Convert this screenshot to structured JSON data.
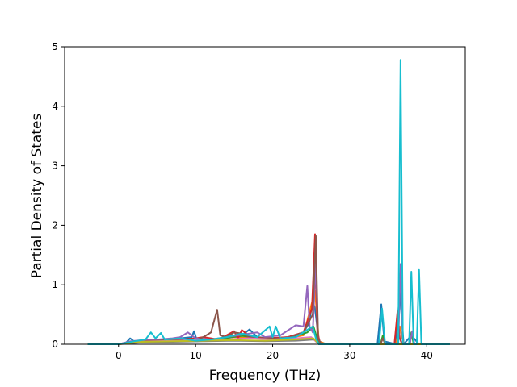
{
  "chart_data": {
    "type": "line",
    "title": "",
    "xlabel": "Frequency (THz)",
    "ylabel": "Partial Density of States",
    "xlim": [
      -7,
      45
    ],
    "ylim": [
      0,
      5
    ],
    "xticks": [
      0,
      10,
      20,
      30,
      40
    ],
    "yticks": [
      0,
      1,
      2,
      3,
      4,
      5
    ],
    "grid": false,
    "legend": "none",
    "series": [
      {
        "color": "#1f77b4",
        "points": [
          [
            -4,
            0
          ],
          [
            0,
            0
          ],
          [
            1,
            0.03
          ],
          [
            1.5,
            0.1
          ],
          [
            2,
            0.05
          ],
          [
            4,
            0.06
          ],
          [
            6,
            0.08
          ],
          [
            8,
            0.1
          ],
          [
            9.5,
            0.12
          ],
          [
            9.8,
            0.22
          ],
          [
            10.2,
            0.05
          ],
          [
            12,
            0.08
          ],
          [
            14,
            0.1
          ],
          [
            16,
            0.15
          ],
          [
            17,
            0.25
          ],
          [
            18,
            0.12
          ],
          [
            20,
            0.1
          ],
          [
            22,
            0.12
          ],
          [
            24,
            0.2
          ],
          [
            24.7,
            0.35
          ],
          [
            25.2,
            0.72
          ],
          [
            25.5,
            0.6
          ],
          [
            26,
            0.05
          ],
          [
            27,
            0
          ],
          [
            33.6,
            0
          ],
          [
            34.1,
            0.67
          ],
          [
            34.5,
            0.05
          ],
          [
            36,
            0
          ],
          [
            36.5,
            0.9
          ],
          [
            37,
            0
          ],
          [
            38,
            0.15
          ],
          [
            39,
            0
          ],
          [
            43,
            0
          ]
        ]
      },
      {
        "color": "#ff7f0e",
        "points": [
          [
            -4,
            0
          ],
          [
            0,
            0
          ],
          [
            2,
            0.05
          ],
          [
            5,
            0.06
          ],
          [
            8,
            0.08
          ],
          [
            10,
            0.06
          ],
          [
            12,
            0.08
          ],
          [
            15,
            0.12
          ],
          [
            18,
            0.1
          ],
          [
            21,
            0.08
          ],
          [
            24,
            0.15
          ],
          [
            25.5,
            0.9
          ],
          [
            26,
            0.05
          ],
          [
            27,
            0
          ],
          [
            36,
            0
          ],
          [
            36.5,
            0.3
          ],
          [
            37,
            0
          ],
          [
            43,
            0
          ]
        ]
      },
      {
        "color": "#2ca02c",
        "points": [
          [
            -4,
            0
          ],
          [
            0,
            0
          ],
          [
            2,
            0.04
          ],
          [
            5,
            0.06
          ],
          [
            8,
            0.07
          ],
          [
            10,
            0.06
          ],
          [
            13,
            0.09
          ],
          [
            16,
            0.14
          ],
          [
            19,
            0.1
          ],
          [
            22,
            0.1
          ],
          [
            24.5,
            0.2
          ],
          [
            25.3,
            0.3
          ],
          [
            26,
            0
          ],
          [
            34,
            0
          ],
          [
            34.3,
            0.15
          ],
          [
            34.6,
            0
          ],
          [
            37.8,
            0
          ],
          [
            38,
            0.2
          ],
          [
            38.3,
            0
          ],
          [
            43,
            0
          ]
        ]
      },
      {
        "color": "#d62728",
        "points": [
          [
            -4,
            0
          ],
          [
            0,
            0
          ],
          [
            2,
            0.05
          ],
          [
            5,
            0.06
          ],
          [
            8,
            0.08
          ],
          [
            10,
            0.1
          ],
          [
            11,
            0.12
          ],
          [
            12,
            0.1
          ],
          [
            13,
            0.08
          ],
          [
            15,
            0.22
          ],
          [
            15.5,
            0.1
          ],
          [
            16,
            0.24
          ],
          [
            17,
            0.14
          ],
          [
            19,
            0.1
          ],
          [
            22,
            0.12
          ],
          [
            24,
            0.2
          ],
          [
            25.1,
            0.6
          ],
          [
            25.5,
            1.85
          ],
          [
            25.8,
            0.2
          ],
          [
            26.2,
            0
          ],
          [
            35.8,
            0
          ],
          [
            36.2,
            0.55
          ],
          [
            36.5,
            0.1
          ],
          [
            36.8,
            0
          ],
          [
            43,
            0
          ]
        ]
      },
      {
        "color": "#9467bd",
        "points": [
          [
            -4,
            0
          ],
          [
            0,
            0
          ],
          [
            1.5,
            0.05
          ],
          [
            3,
            0.07
          ],
          [
            5,
            0.08
          ],
          [
            7,
            0.1
          ],
          [
            8,
            0.12
          ],
          [
            9,
            0.2
          ],
          [
            10,
            0.1
          ],
          [
            12,
            0.08
          ],
          [
            14,
            0.12
          ],
          [
            16,
            0.16
          ],
          [
            18,
            0.2
          ],
          [
            19,
            0.12
          ],
          [
            21,
            0.15
          ],
          [
            23,
            0.32
          ],
          [
            24,
            0.3
          ],
          [
            24.5,
            0.98
          ],
          [
            24.8,
            0.3
          ],
          [
            25.2,
            0.2
          ],
          [
            25.6,
            1.4
          ],
          [
            25.9,
            0.1
          ],
          [
            26.3,
            0
          ],
          [
            36.3,
            0
          ],
          [
            36.6,
            1.35
          ],
          [
            36.9,
            0
          ],
          [
            37.8,
            0
          ],
          [
            38.1,
            0.22
          ],
          [
            38.4,
            0
          ],
          [
            43,
            0
          ]
        ]
      },
      {
        "color": "#8c564b",
        "points": [
          [
            -4,
            0
          ],
          [
            0,
            0
          ],
          [
            2,
            0.05
          ],
          [
            5,
            0.06
          ],
          [
            8,
            0.08
          ],
          [
            10,
            0.06
          ],
          [
            11,
            0.12
          ],
          [
            12,
            0.2
          ],
          [
            12.8,
            0.58
          ],
          [
            13.2,
            0.15
          ],
          [
            14,
            0.12
          ],
          [
            15,
            0.2
          ],
          [
            16,
            0.18
          ],
          [
            17,
            0.12
          ],
          [
            19,
            0.1
          ],
          [
            22,
            0.1
          ],
          [
            24,
            0.2
          ],
          [
            25.2,
            0.5
          ],
          [
            25.6,
            1.82
          ],
          [
            25.9,
            0.1
          ],
          [
            26.3,
            0
          ],
          [
            34,
            0
          ],
          [
            34.3,
            0.1
          ],
          [
            34.6,
            0
          ],
          [
            43,
            0
          ]
        ]
      },
      {
        "color": "#e377c2",
        "points": [
          [
            -4,
            0
          ],
          [
            0,
            0
          ],
          [
            2,
            0.04
          ],
          [
            5,
            0.05
          ],
          [
            8,
            0.06
          ],
          [
            11,
            0.07
          ],
          [
            14,
            0.08
          ],
          [
            17,
            0.1
          ],
          [
            20,
            0.08
          ],
          [
            23,
            0.1
          ],
          [
            25,
            0.12
          ],
          [
            26,
            0
          ],
          [
            43,
            0
          ]
        ]
      },
      {
        "color": "#7f7f7f",
        "points": [
          [
            -4,
            0
          ],
          [
            0,
            0
          ],
          [
            3,
            0.03
          ],
          [
            7,
            0.04
          ],
          [
            11,
            0.05
          ],
          [
            15,
            0.06
          ],
          [
            19,
            0.05
          ],
          [
            23,
            0.06
          ],
          [
            25.5,
            0.08
          ],
          [
            26,
            0
          ],
          [
            43,
            0
          ]
        ]
      },
      {
        "color": "#bcbd22",
        "points": [
          [
            -4,
            0
          ],
          [
            0,
            0
          ],
          [
            3,
            0.04
          ],
          [
            7,
            0.05
          ],
          [
            11,
            0.06
          ],
          [
            15,
            0.07
          ],
          [
            19,
            0.06
          ],
          [
            23,
            0.08
          ],
          [
            25.3,
            0.1
          ],
          [
            26,
            0
          ],
          [
            43,
            0
          ]
        ]
      },
      {
        "color": "#17becf",
        "points": [
          [
            -4,
            0
          ],
          [
            0,
            0
          ],
          [
            2,
            0.05
          ],
          [
            3.5,
            0.08
          ],
          [
            4.2,
            0.2
          ],
          [
            4.8,
            0.1
          ],
          [
            5.5,
            0.19
          ],
          [
            6,
            0.08
          ],
          [
            8,
            0.1
          ],
          [
            10,
            0.06
          ],
          [
            12,
            0.08
          ],
          [
            14,
            0.12
          ],
          [
            16,
            0.18
          ],
          [
            18,
            0.12
          ],
          [
            19.6,
            0.3
          ],
          [
            20,
            0.12
          ],
          [
            20.4,
            0.3
          ],
          [
            21,
            0.1
          ],
          [
            23,
            0.12
          ],
          [
            25.2,
            0.3
          ],
          [
            25.6,
            0.1
          ],
          [
            26,
            0
          ],
          [
            33.8,
            0
          ],
          [
            34.2,
            0.6
          ],
          [
            34.6,
            0
          ],
          [
            36.3,
            0
          ],
          [
            36.6,
            4.78
          ],
          [
            36.9,
            0
          ],
          [
            37.7,
            0
          ],
          [
            38,
            1.22
          ],
          [
            38.3,
            0
          ],
          [
            38.7,
            0
          ],
          [
            39,
            1.25
          ],
          [
            39.3,
            0
          ],
          [
            43,
            0
          ]
        ]
      }
    ]
  }
}
